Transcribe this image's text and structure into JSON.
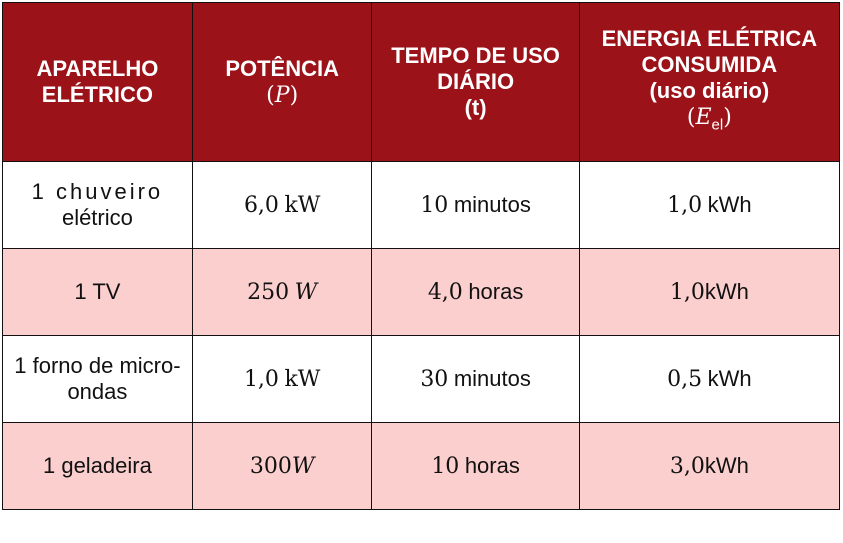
{
  "headers": {
    "col1": [
      "APARELHO",
      "ELÉTRICO"
    ],
    "col2": {
      "label": "POTÊNCIA",
      "symbol": "P"
    },
    "col3": [
      "TEMPO DE USO",
      "DIÁRIO",
      "(t)"
    ],
    "col4": {
      "line1": "ENERGIA ELÉTRICA",
      "line2": "CONSUMIDA",
      "line3": "(uso diário)",
      "symbol": "E",
      "subscript": "el"
    }
  },
  "rows": [
    {
      "device": [
        "1 chuveiro",
        "elétrico"
      ],
      "power_num": "6,0",
      "power_unit": "kW",
      "time_num": "10",
      "time_unit": "minutos",
      "energy_num": "1,0",
      "energy_unit": "kWh"
    },
    {
      "device": [
        "1 TV"
      ],
      "power_num": "250",
      "power_unit": "W",
      "time_num": "4,0",
      "time_unit": "horas",
      "energy_num": "1,0",
      "energy_unit": "kWh"
    },
    {
      "device": [
        "1 forno de micro-",
        "ondas"
      ],
      "power_num": "1,0",
      "power_unit": "kW",
      "time_num": "30",
      "time_unit": "minutos",
      "energy_num": "0,5",
      "energy_unit": "kWh"
    },
    {
      "device": [
        "1 geladeira"
      ],
      "power_num": "300",
      "power_unit": "W",
      "time_num": "10",
      "time_unit": "horas",
      "energy_num": "3,0",
      "energy_unit": "kWh"
    }
  ],
  "colors": {
    "header_bg": "#9b1219",
    "header_text": "#ffffff",
    "row_pink": "#fccfcf",
    "row_white": "#ffffff",
    "border": "#111111"
  }
}
